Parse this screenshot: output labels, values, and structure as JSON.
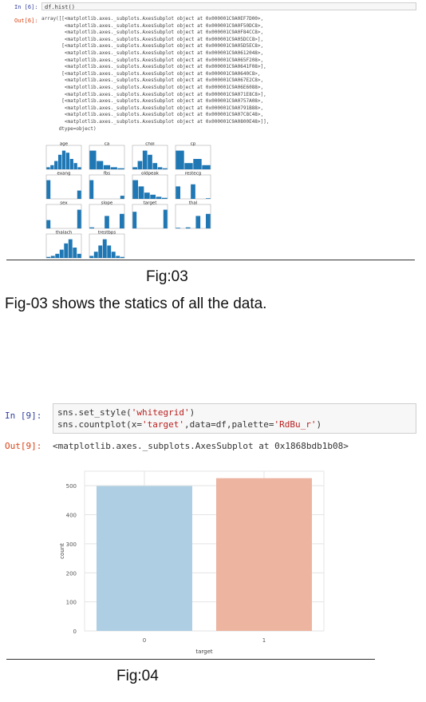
{
  "cell1": {
    "in_prompt": "In [6]:",
    "code": "df.hist()",
    "out_prompt": "Out[6]:",
    "output_lines": [
      "array([[<matplotlib.axes._subplots.AxesSubplot object at 0x000001C9A0EF7D00>,",
      "        <matplotlib.axes._subplots.AxesSubplot object at 0x000001C9A0F50DC8>,",
      "        <matplotlib.axes._subplots.AxesSubplot object at 0x000001C9A0F84CC8>,",
      "        <matplotlib.axes._subplots.AxesSubplot object at 0x000001C9A05DCC8>],",
      "       [<matplotlib.axes._subplots.AxesSubplot object at 0x000001C9A05D5EC8>,",
      "        <matplotlib.axes._subplots.AxesSubplot object at 0x000001C9A0612048>,",
      "        <matplotlib.axes._subplots.AxesSubplot object at 0x000001C9A065F208>,",
      "        <matplotlib.axes._subplots.AxesSubplot object at 0x000001C9A0641F08>],",
      "       [<matplotlib.axes._subplots.AxesSubplot object at 0x000001C9A0640C8>,",
      "        <matplotlib.axes._subplots.AxesSubplot object at 0x000001C9A067E2C8>,",
      "        <matplotlib.axes._subplots.AxesSubplot object at 0x000001C9A06E6088>,",
      "        <matplotlib.axes._subplots.AxesSubplot object at 0x000001C9A071E8C8>],",
      "       [<matplotlib.axes._subplots.AxesSubplot object at 0x000001C9A0757A08>,",
      "        <matplotlib.axes._subplots.AxesSubplot object at 0x000001C9A0791B88>,",
      "        <matplotlib.axes._subplots.AxesSubplot object at 0x000001C9A07C8C48>,",
      "        <matplotlib.axes._subplots.AxesSubplot object at 0x000001C9A0800E48>]],",
      "      dtype=object)"
    ]
  },
  "hist_grid": {
    "titles": [
      "age",
      "ca",
      "chol",
      "cp",
      "exang",
      "fbs",
      "oldpeak",
      "restecg",
      "sex",
      "slope",
      "target",
      "thal",
      "thalach",
      "trestbps"
    ],
    "bar_color": "#1f77b4"
  },
  "fig03": {
    "caption": "Fig:03",
    "description": "Fig-03 shows the statics of all the data."
  },
  "cell2": {
    "in_prompt": "In [9]:",
    "code_line1_a": "sns.set_style(",
    "code_line1_str": "'whitegrid'",
    "code_line1_b": ")",
    "code_line2_a": "sns.countplot(x=",
    "code_line2_str1": "'target'",
    "code_line2_b": ",data=df,palette=",
    "code_line2_str2": "'RdBu_r'",
    "code_line2_c": ")",
    "out_prompt": "Out[9]:",
    "output": "<matplotlib.axes._subplots.AxesSubplot at 0x1868bdb1b08>"
  },
  "chart_data": {
    "type": "bar",
    "categories": [
      "0",
      "1"
    ],
    "values": [
      499,
      526
    ],
    "colors": [
      "#aecfe3",
      "#edb4a0"
    ],
    "xlabel": "target",
    "ylabel": "count",
    "ylim": [
      0,
      550
    ],
    "yticks": [
      0,
      100,
      200,
      300,
      400,
      500
    ],
    "grid": true
  },
  "fig04": {
    "caption": "Fig:04"
  }
}
